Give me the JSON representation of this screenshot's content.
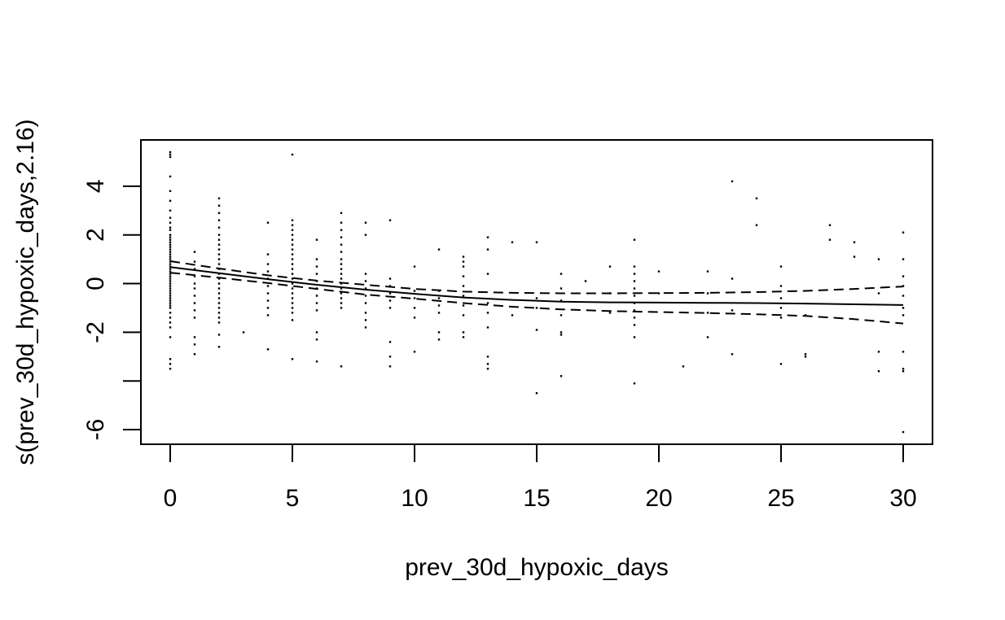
{
  "chart_data": {
    "type": "line",
    "title": "",
    "xlabel": "prev_30d_hypoxic_days",
    "ylabel": "s(prev_30d_hypoxic_days,2.16)",
    "xlim": [
      -1.2,
      31.2
    ],
    "ylim": [
      -6.6,
      5.9
    ],
    "xticks": [
      0,
      5,
      10,
      15,
      20,
      25,
      30
    ],
    "yticks": [
      -6,
      -4,
      -2,
      0,
      2,
      4
    ],
    "ytick_labels": [
      "-6",
      "",
      "-2",
      "0",
      "2",
      "4"
    ],
    "grid": false,
    "series": [
      {
        "role": "fit",
        "style": "solid",
        "x": [
          0,
          2,
          4,
          6,
          8,
          10,
          12,
          14,
          16,
          18,
          20,
          22,
          24,
          26,
          28,
          30
        ],
        "y": [
          0.68,
          0.43,
          0.18,
          -0.05,
          -0.25,
          -0.42,
          -0.57,
          -0.67,
          -0.74,
          -0.77,
          -0.78,
          -0.79,
          -0.8,
          -0.82,
          -0.85,
          -0.88
        ]
      },
      {
        "role": "upper",
        "style": "dashed",
        "x": [
          0,
          2,
          4,
          6,
          8,
          10,
          12,
          14,
          16,
          18,
          20,
          22,
          24,
          26,
          28,
          30
        ],
        "y": [
          0.92,
          0.62,
          0.34,
          0.12,
          -0.05,
          -0.22,
          -0.33,
          -0.38,
          -0.4,
          -0.4,
          -0.39,
          -0.38,
          -0.35,
          -0.3,
          -0.22,
          -0.12
        ]
      },
      {
        "role": "lower",
        "style": "dashed",
        "x": [
          0,
          2,
          4,
          6,
          8,
          10,
          12,
          14,
          16,
          18,
          20,
          22,
          24,
          26,
          28,
          30
        ],
        "y": [
          0.45,
          0.24,
          0.02,
          -0.22,
          -0.45,
          -0.62,
          -0.8,
          -0.95,
          -1.06,
          -1.13,
          -1.17,
          -1.21,
          -1.26,
          -1.33,
          -1.46,
          -1.64
        ]
      }
    ],
    "rug": [
      {
        "x": 0,
        "y": [
          5.4,
          5.3,
          5.2,
          4.4,
          3.8,
          3.4,
          3.0,
          2.7,
          2.5,
          2.3,
          2.2,
          2.0,
          1.9,
          1.8,
          1.7,
          1.6,
          1.5,
          1.4,
          1.3,
          1.2,
          1.1,
          1.0,
          0.9,
          0.8,
          0.7,
          0.6,
          0.5,
          0.4,
          0.3,
          0.2,
          0.1,
          0.0,
          -0.1,
          -0.2,
          -0.3,
          -0.4,
          -0.5,
          -0.6,
          -0.7,
          -0.8,
          -0.9,
          -1.0,
          -1.2,
          -1.4,
          -1.6,
          -1.8,
          -2.2,
          -3.1,
          -3.3,
          -3.5
        ]
      },
      {
        "x": 1,
        "y": [
          1.3,
          0.9,
          0.6,
          0.3,
          0.0,
          -0.2,
          -0.5,
          -0.8,
          -1.1,
          -1.4,
          -2.2,
          -2.5,
          -2.9
        ]
      },
      {
        "x": 2,
        "y": [
          3.5,
          3.2,
          2.9,
          2.6,
          2.3,
          2.0,
          1.8,
          1.6,
          1.4,
          1.2,
          1.0,
          0.8,
          0.6,
          0.4,
          0.2,
          0.0,
          -0.2,
          -0.4,
          -0.6,
          -0.8,
          -1.0,
          -1.2,
          -1.4,
          -1.6,
          -2.1,
          -2.6
        ]
      },
      {
        "x": 3,
        "y": [
          -2.0
        ]
      },
      {
        "x": 4,
        "y": [
          2.5,
          1.2,
          0.8,
          0.5,
          0.2,
          -0.1,
          -0.4,
          -0.7,
          -1.0,
          -1.3,
          -2.7
        ]
      },
      {
        "x": 5,
        "y": [
          5.3,
          2.6,
          2.4,
          2.2,
          2.0,
          1.8,
          1.6,
          1.4,
          1.2,
          1.0,
          0.8,
          0.6,
          0.4,
          0.2,
          0.0,
          -0.2,
          -0.4,
          -0.6,
          -0.8,
          -1.0,
          -1.2,
          -1.5,
          -3.1
        ]
      },
      {
        "x": 6,
        "y": [
          1.8,
          1.0,
          0.7,
          0.4,
          0.1,
          -0.2,
          -0.5,
          -0.8,
          -1.1,
          -2.0,
          -2.3,
          -3.2
        ]
      },
      {
        "x": 7,
        "y": [
          2.9,
          2.5,
          2.2,
          1.9,
          1.6,
          1.3,
          1.0,
          0.8,
          0.6,
          0.4,
          0.2,
          0.0,
          -0.2,
          -0.4,
          -0.6,
          -0.8,
          -1.0,
          -3.4
        ]
      },
      {
        "x": 8,
        "y": [
          2.5,
          2.0,
          0.4,
          0.1,
          -0.2,
          -0.5,
          -0.8,
          -1.2,
          -1.5,
          -1.8
        ]
      },
      {
        "x": 9,
        "y": [
          2.6,
          0.2,
          -0.1,
          -0.4,
          -0.7,
          -1.0,
          -2.4,
          -3.0,
          -3.4
        ]
      },
      {
        "x": 10,
        "y": [
          0.7,
          -0.3,
          -0.6,
          -1.0,
          -1.4,
          -2.8
        ]
      },
      {
        "x": 11,
        "y": [
          1.4,
          -0.3,
          -0.6,
          -0.9,
          -1.2,
          -2.0,
          -2.3
        ]
      },
      {
        "x": 12,
        "y": [
          1.1,
          0.9,
          0.7,
          0.3,
          -0.1,
          -0.5,
          -0.9,
          -1.3,
          -2.0,
          -2.2
        ]
      },
      {
        "x": 13,
        "y": [
          1.9,
          1.4,
          0.4,
          -0.8,
          -1.2,
          -1.8,
          -3.0,
          -3.3,
          -3.5
        ]
      },
      {
        "x": 14,
        "y": [
          1.7,
          -1.3
        ]
      },
      {
        "x": 15,
        "y": [
          1.7,
          -0.6,
          -1.0,
          -1.9,
          -4.5
        ]
      },
      {
        "x": 16,
        "y": [
          0.4,
          -0.2,
          -0.7,
          -1.3,
          -2.0,
          -2.1,
          -3.8
        ]
      },
      {
        "x": 17,
        "y": [
          0.1
        ]
      },
      {
        "x": 18,
        "y": [
          0.7,
          -0.4,
          -1.2
        ]
      },
      {
        "x": 19,
        "y": [
          1.8,
          0.7,
          0.4,
          0.1,
          -0.2,
          -0.5,
          -0.8,
          -1.1,
          -1.4,
          -1.7,
          -2.2,
          -4.1
        ]
      },
      {
        "x": 20,
        "y": [
          0.5,
          -0.4
        ]
      },
      {
        "x": 21,
        "y": [
          -3.4
        ]
      },
      {
        "x": 22,
        "y": [
          0.5,
          -0.4,
          -1.2,
          -2.2
        ]
      },
      {
        "x": 23,
        "y": [
          4.2,
          0.2,
          -1.1,
          -2.9
        ]
      },
      {
        "x": 24,
        "y": [
          3.5,
          2.4
        ]
      },
      {
        "x": 25,
        "y": [
          0.7,
          -0.1,
          -0.6,
          -1.0,
          -1.4,
          -3.3
        ]
      },
      {
        "x": 26,
        "y": [
          -1.3,
          -2.9,
          -3.0
        ]
      },
      {
        "x": 27,
        "y": [
          2.4,
          1.8
        ]
      },
      {
        "x": 28,
        "y": [
          1.7,
          1.1
        ]
      },
      {
        "x": 29,
        "y": [
          1.0,
          -0.4,
          -2.8,
          -3.6
        ]
      },
      {
        "x": 30,
        "y": [
          2.1,
          1.0,
          0.3,
          -0.1,
          -0.5,
          -1.0,
          -1.3,
          -2.8,
          -3.5,
          -3.6,
          -6.1
        ]
      }
    ]
  }
}
